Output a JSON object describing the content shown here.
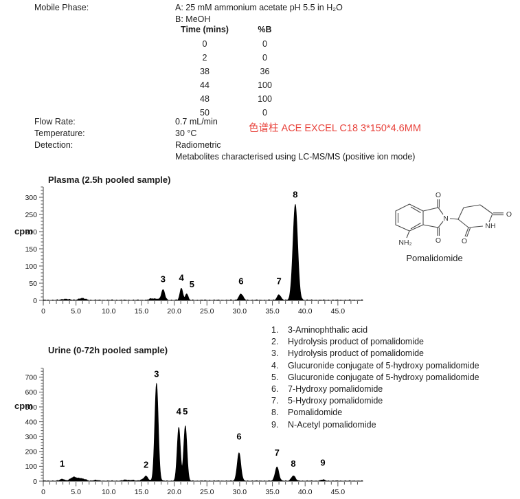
{
  "conditions": {
    "mobile_phase_label": "Mobile Phase:",
    "mobile_phase_a": "A: 25 mM ammonium acetate pH 5.5 in H₂O",
    "mobile_phase_b": "B: MeOH",
    "gradient_table": {
      "col1_header": "Time (mins)",
      "col2_header": "%B",
      "rows": [
        [
          "0",
          "0"
        ],
        [
          "2",
          "0"
        ],
        [
          "38",
          "36"
        ],
        [
          "44",
          "100"
        ],
        [
          "48",
          "100"
        ],
        [
          "50",
          "0"
        ]
      ]
    },
    "flow_rate_label": "Flow Rate:",
    "flow_rate": "0.7 mL/min",
    "temperature_label": "Temperature:",
    "temperature": "30 °C",
    "detection_label": "Detection:",
    "detection": "Radiometric",
    "detection_note": "Metabolites characterised using LC-MS/MS (positive ion mode)",
    "column_note": {
      "text": "色谱柱 ACE EXCEL C18 3*150*4.6MM",
      "color": "#e8433c"
    }
  },
  "structure": {
    "caption": "Pomalidomide",
    "atoms": {
      "o_top": "O",
      "o_phthal_bottom": "O",
      "n_imide": "N",
      "o_glut_bottom": "O",
      "o_right": "O",
      "nh": "NH",
      "nh2": "NH₂"
    }
  },
  "legend": {
    "items": [
      {
        "num": "1.",
        "text": "3-Aminophthalic acid"
      },
      {
        "num": "2.",
        "text": "Hydrolysis product of pomalidomide"
      },
      {
        "num": "3.",
        "text": "Hydrolysis product of pomalidomide"
      },
      {
        "num": "4.",
        "text": "Glucuronide conjugate of 5-hydroxy pomalidomide"
      },
      {
        "num": "5.",
        "text": "Glucuronide conjugate of 5-hydroxy pomalidomide"
      },
      {
        "num": "6.",
        "text": "7-Hydroxy pomalidomide"
      },
      {
        "num": "7.",
        "text": "5-Hydroxy pomalidomide"
      },
      {
        "num": "8.",
        "text": "Pomalidomide"
      },
      {
        "num": "9.",
        "text": "N-Acetyl pomalidomide"
      }
    ]
  },
  "chart_data": [
    {
      "id": "plasma",
      "type": "area",
      "title": "Plasma (2.5h pooled sample)",
      "ylabel": "cpm",
      "xlabel": "",
      "x_unit": "mins",
      "xlim": [
        0,
        48.8
      ],
      "ylim": [
        0,
        330
      ],
      "grid": false,
      "y_major_step": 50,
      "y_minor_step": 10,
      "x_major_ticks": [
        0,
        5,
        10,
        15,
        20,
        25,
        30,
        35,
        40,
        45
      ],
      "x_tick_labels": [
        "0",
        "5.0",
        "10.0",
        "15.0",
        "20.0",
        "25.0",
        "30.0",
        "35.0",
        "40.0",
        "45.0"
      ],
      "peaks": [
        {
          "label": "3",
          "t": 18.3,
          "cpm": 30,
          "w": 0.26,
          "label_cpm": 62
        },
        {
          "label": "4",
          "t": 21.1,
          "cpm": 35,
          "w": 0.22,
          "label_cpm": 66
        },
        {
          "label": "5",
          "t": 21.9,
          "cpm": 19,
          "w": 0.2,
          "label_cpm": 47,
          "label_dt": 0.8
        },
        {
          "label": "6",
          "t": 30.2,
          "cpm": 18,
          "w": 0.3,
          "label_cpm": 56
        },
        {
          "label": "7",
          "t": 36.0,
          "cpm": 16,
          "w": 0.27,
          "label_cpm": 56
        },
        {
          "label": "8",
          "t": 38.5,
          "cpm": 278,
          "w": 0.36,
          "label_cpm": 308
        }
      ],
      "noise_bumps": [
        {
          "t": 3.4,
          "cpm": 3,
          "w": 0.5
        },
        {
          "t": 5.9,
          "cpm": 5,
          "w": 0.5
        },
        {
          "t": 16.6,
          "cpm": 4,
          "w": 0.4
        },
        {
          "t": 17.4,
          "cpm": 3,
          "w": 0.3
        }
      ]
    },
    {
      "id": "urine",
      "type": "area",
      "title": "Urine (0-72h pooled sample)",
      "ylabel": "cpm",
      "xlabel": "",
      "x_unit": "mins",
      "xlim": [
        0,
        48.8
      ],
      "ylim": [
        0,
        760
      ],
      "grid": false,
      "y_major_step": 100,
      "y_minor_step": 20,
      "x_major_ticks": [
        0,
        5,
        10,
        15,
        20,
        25,
        30,
        35,
        40,
        45
      ],
      "x_tick_labels": [
        "0",
        "5.0",
        "10.0",
        "15.0",
        "20.0",
        "25.0",
        "30.0",
        "35.0",
        "40.0",
        "45.0"
      ],
      "peaks": [
        {
          "label": "1",
          "t": 2.9,
          "cpm": 12,
          "w": 0.35,
          "label_cpm": 118
        },
        {
          "label": "2",
          "t": 15.7,
          "cpm": 32,
          "w": 0.28,
          "label_cpm": 112
        },
        {
          "label": "3",
          "t": 17.3,
          "cpm": 660,
          "w": 0.27,
          "label_cpm": 722
        },
        {
          "label": "4",
          "t": 20.7,
          "cpm": 362,
          "w": 0.25,
          "label_cpm": 470
        },
        {
          "label": "5",
          "t": 21.7,
          "cpm": 372,
          "w": 0.25,
          "label_cpm": 470
        },
        {
          "label": "6",
          "t": 29.9,
          "cpm": 190,
          "w": 0.28,
          "label_cpm": 300
        },
        {
          "label": "7",
          "t": 35.7,
          "cpm": 95,
          "w": 0.28,
          "label_cpm": 192
        },
        {
          "label": "8",
          "t": 38.2,
          "cpm": 35,
          "w": 0.3,
          "label_cpm": 118
        },
        {
          "label": "9",
          "t": 42.7,
          "cpm": 8,
          "w": 0.3,
          "label_cpm": 126
        }
      ],
      "noise_bumps": [
        {
          "t": 4.7,
          "cpm": 26,
          "w": 0.5
        },
        {
          "t": 5.7,
          "cpm": 14,
          "w": 0.35
        },
        {
          "t": 6.4,
          "cpm": 8,
          "w": 0.3
        },
        {
          "t": 8.0,
          "cpm": 5,
          "w": 0.4
        },
        {
          "t": 12.6,
          "cpm": 7,
          "w": 0.4
        },
        {
          "t": 13.6,
          "cpm": 6,
          "w": 0.3
        },
        {
          "t": 15.1,
          "cpm": 8,
          "w": 0.3
        }
      ]
    }
  ]
}
